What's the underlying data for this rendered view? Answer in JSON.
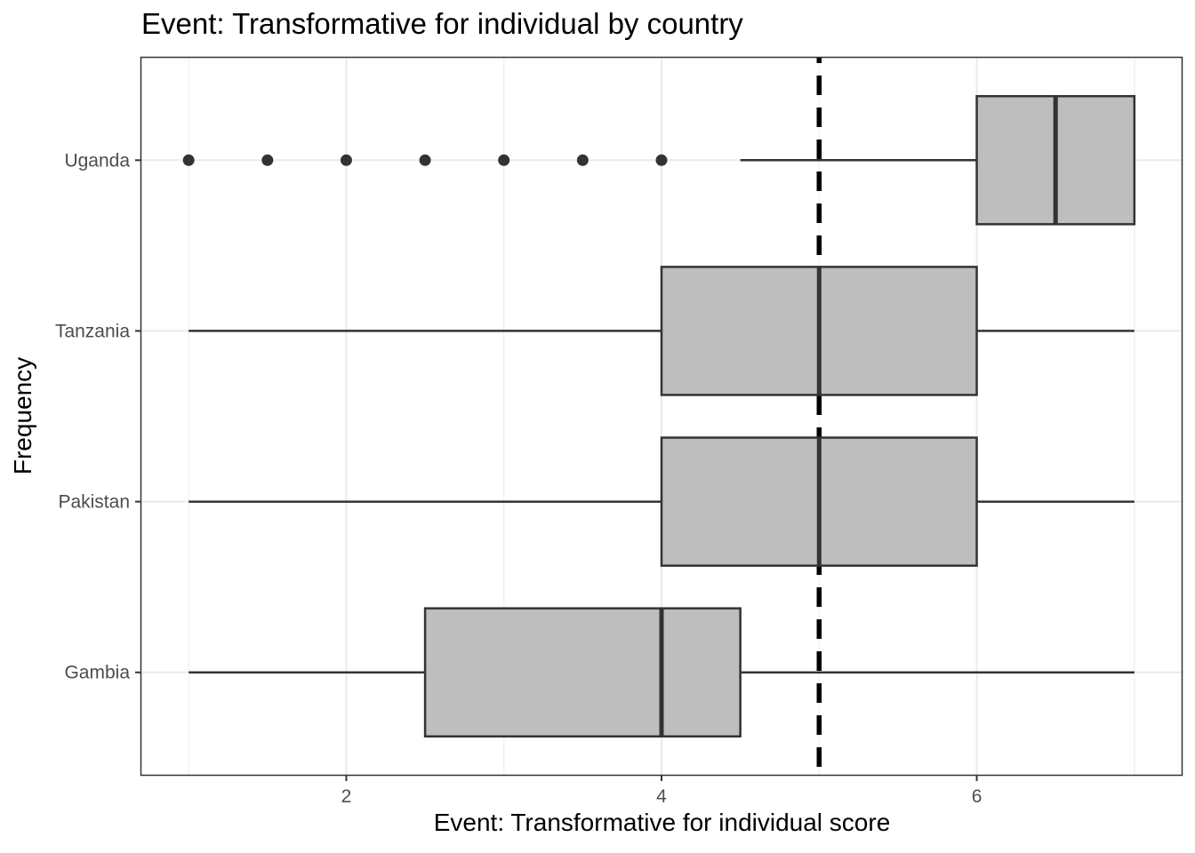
{
  "chart_data": {
    "type": "boxplot",
    "orientation": "horizontal",
    "title": "Event: Transformative for individual by country",
    "xlabel": "Event: Transformative for individual score",
    "ylabel": "Frequency",
    "xlim": [
      0.7,
      7.3
    ],
    "x_ticks": [
      2,
      4,
      6
    ],
    "x_tick_labels": [
      "2",
      "4",
      "6"
    ],
    "categories": [
      "Gambia",
      "Pakistan",
      "Tanzania",
      "Uganda"
    ],
    "boxes": [
      {
        "category": "Gambia",
        "whisker_low": 1,
        "q1": 2.5,
        "median": 4,
        "q3": 4.5,
        "whisker_high": 7,
        "outliers": []
      },
      {
        "category": "Pakistan",
        "whisker_low": 1,
        "q1": 4,
        "median": 5,
        "q3": 6,
        "whisker_high": 7,
        "outliers": []
      },
      {
        "category": "Tanzania",
        "whisker_low": 1,
        "q1": 4,
        "median": 5,
        "q3": 6,
        "whisker_high": 7,
        "outliers": []
      },
      {
        "category": "Uganda",
        "whisker_low": 4.5,
        "q1": 6,
        "median": 6.5,
        "q3": 7,
        "whisker_high": 7,
        "outliers": [
          1,
          1.5,
          2,
          2.5,
          3,
          3.5,
          4
        ]
      }
    ],
    "reference_line": {
      "x": 5,
      "style": "dashed",
      "color": "#000000"
    },
    "grid": true,
    "legend": "none",
    "colors": {
      "box_fill": "#bebebe",
      "box_stroke": "#333333",
      "grid": "#ebebeb",
      "panel_border": "#333333"
    }
  }
}
